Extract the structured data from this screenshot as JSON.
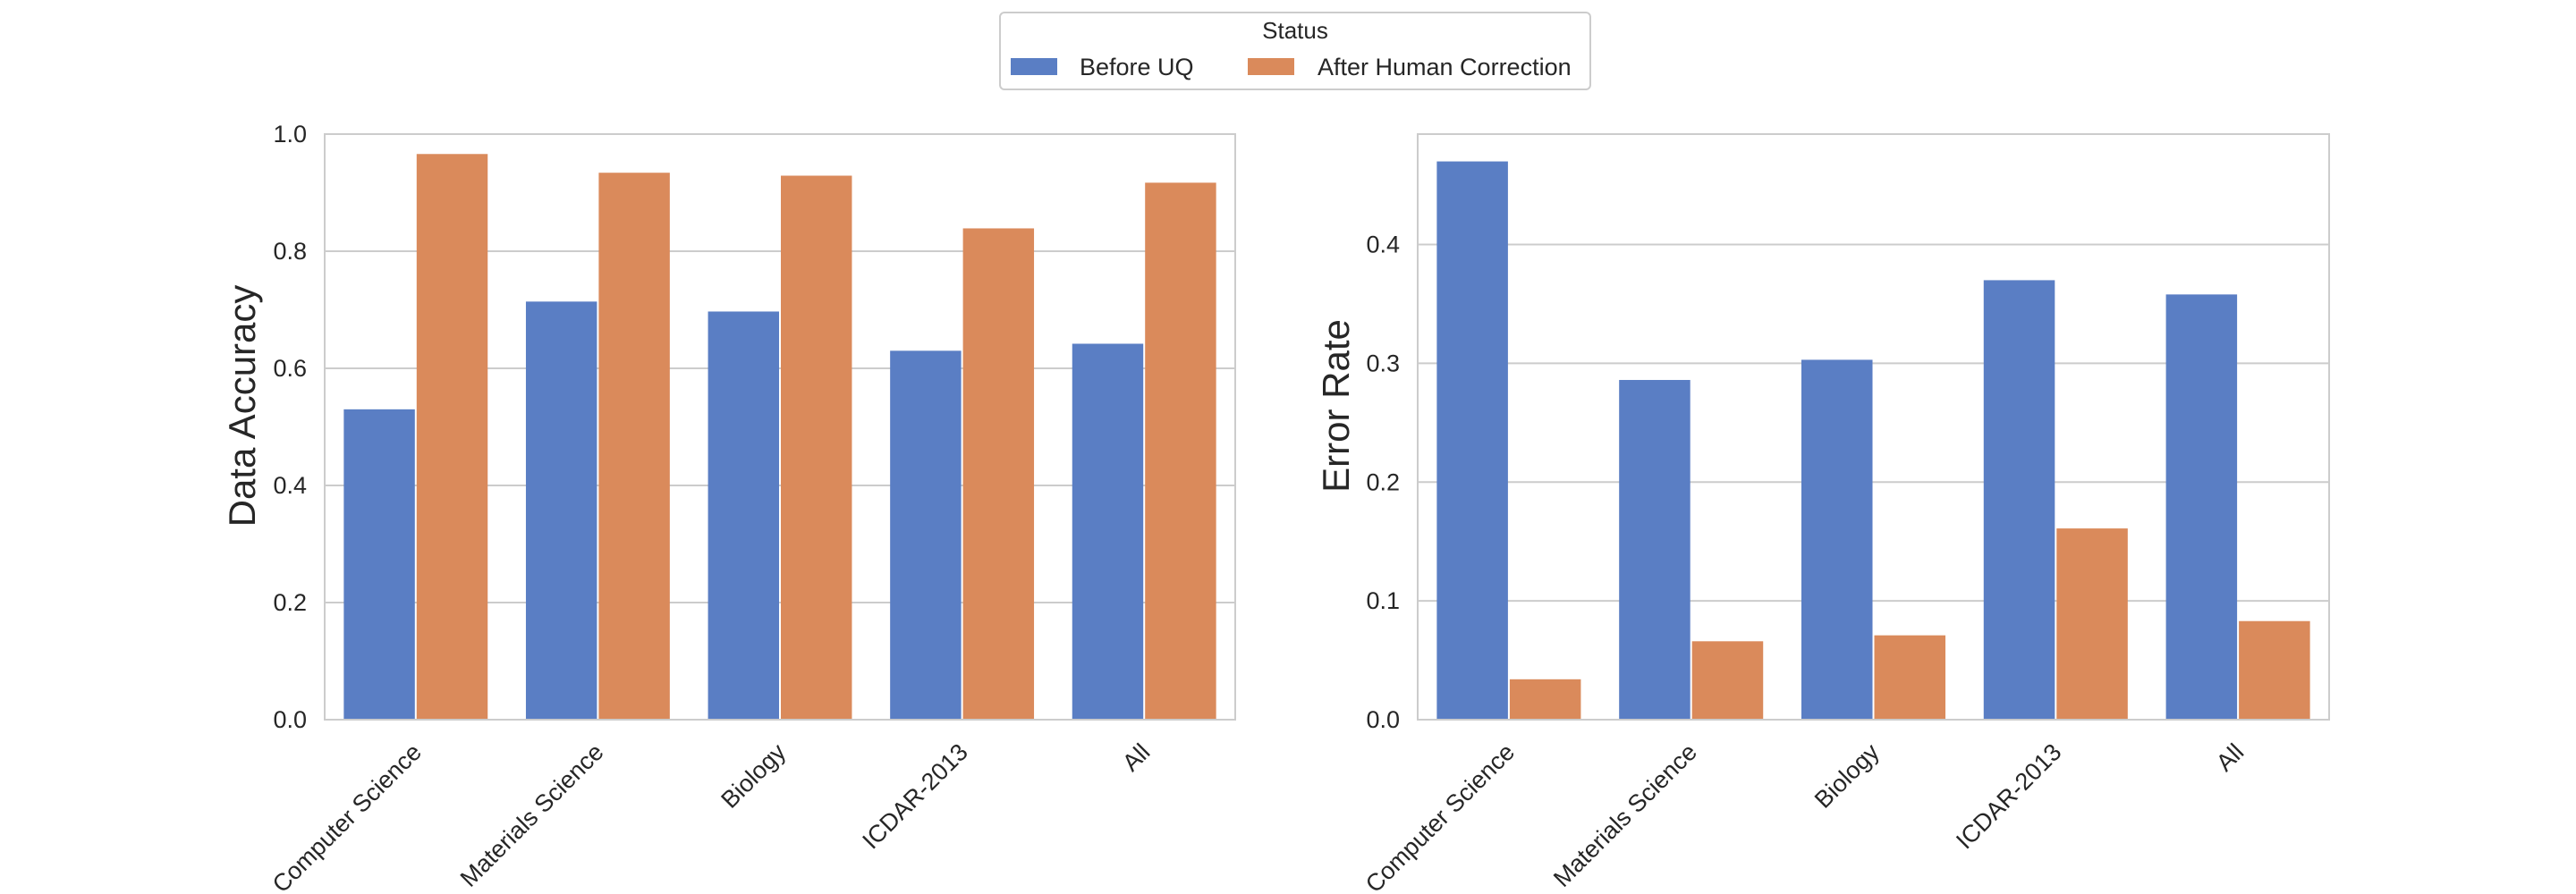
{
  "legend": {
    "title": "Status",
    "entries": [
      "Before UQ",
      "After Human Correction"
    ]
  },
  "colors": {
    "series": [
      "#5a7ec4",
      "#da8a5b"
    ],
    "grid": "#cccccc",
    "axis": "#cccccc",
    "text": "#262626"
  },
  "chart_data": [
    {
      "type": "bar",
      "title": "",
      "xlabel": "",
      "ylabel": "Data Accuracy",
      "categories": [
        "Computer Science",
        "Materials Science",
        "Biology",
        "ICDAR-2013",
        "All"
      ],
      "series": [
        {
          "name": "Before UQ",
          "values": [
            0.53,
            0.714,
            0.697,
            0.63,
            0.642
          ]
        },
        {
          "name": "After Human Correction",
          "values": [
            0.966,
            0.934,
            0.929,
            0.839,
            0.917
          ]
        }
      ],
      "ylim": [
        0,
        1.0
      ],
      "yticks": [
        0.0,
        0.2,
        0.4,
        0.6,
        0.8,
        1.0
      ],
      "ytick_labels": [
        "0.0",
        "0.2",
        "0.4",
        "0.6",
        "0.8",
        "1.0"
      ],
      "grid": true
    },
    {
      "type": "bar",
      "title": "",
      "xlabel": "",
      "ylabel": "Error Rate",
      "categories": [
        "Computer Science",
        "Materials Science",
        "Biology",
        "ICDAR-2013",
        "All"
      ],
      "series": [
        {
          "name": "Before UQ",
          "values": [
            0.47,
            0.286,
            0.303,
            0.37,
            0.358
          ]
        },
        {
          "name": "After Human Correction",
          "values": [
            0.034,
            0.066,
            0.071,
            0.161,
            0.083
          ]
        }
      ],
      "ylim": [
        0,
        0.493
      ],
      "yticks": [
        0.0,
        0.1,
        0.2,
        0.3,
        0.4
      ],
      "ytick_labels": [
        "0.0",
        "0.1",
        "0.2",
        "0.3",
        "0.4"
      ],
      "grid": true
    }
  ]
}
